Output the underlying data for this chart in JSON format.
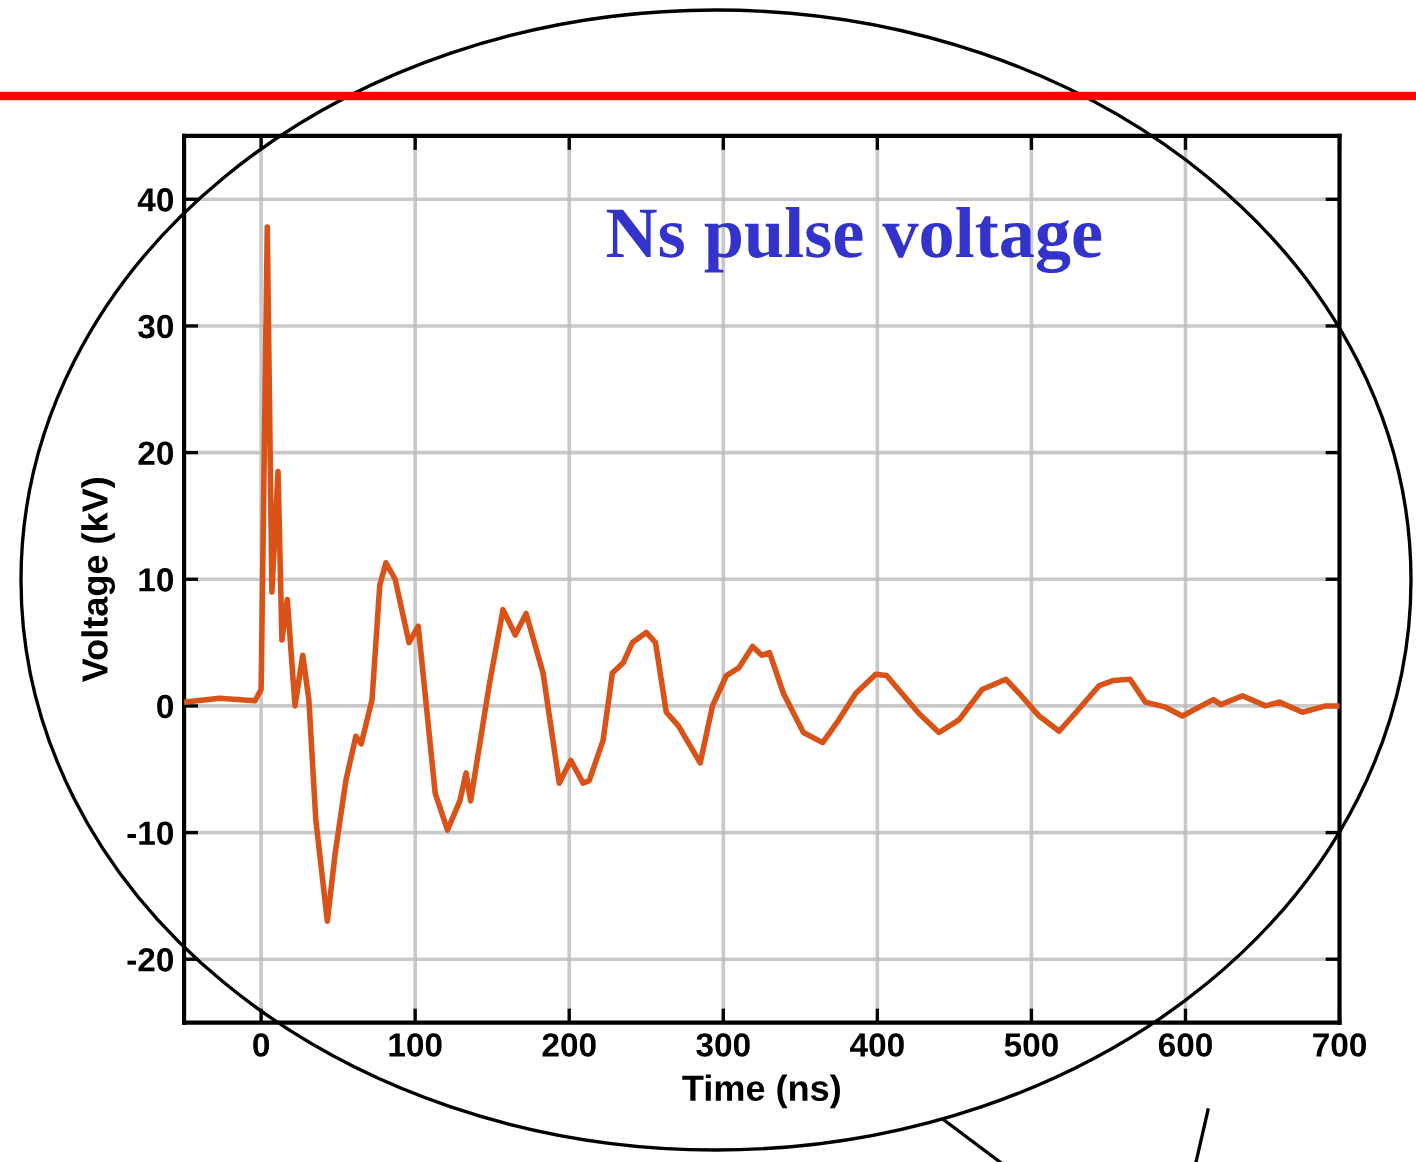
{
  "chart_data": {
    "type": "line",
    "title": "Ns pulse voltage",
    "xlabel": "Time (ns)",
    "ylabel": "Voltage (kV)",
    "xlim": [
      -50,
      700
    ],
    "ylim": [
      -25,
      45
    ],
    "xticks": [
      0,
      100,
      200,
      300,
      400,
      500,
      600,
      700
    ],
    "yticks": [
      -20,
      -10,
      0,
      10,
      20,
      30,
      40
    ],
    "grid": true,
    "legend": false,
    "series": [
      {
        "color": "#d95319",
        "x": [
          -49,
          -27,
          -4,
          0,
          4,
          7,
          11,
          13.5,
          17,
          22,
          27,
          31,
          35.5,
          43,
          48,
          55,
          61.5,
          65,
          72,
          77,
          81,
          87,
          96,
          102,
          113,
          121,
          129,
          133,
          136,
          148,
          157,
          165,
          172,
          183,
          193.5,
          201,
          209,
          213,
          222,
          228,
          235,
          241,
          250,
          256,
          263,
          271,
          285,
          293,
          302,
          310,
          319,
          325,
          330,
          339,
          352,
          364.5,
          375,
          386,
          399,
          406,
          427,
          440,
          453,
          468,
          483.5,
          492,
          505,
          518,
          529,
          544,
          553,
          564,
          574,
          587,
          598,
          618,
          623,
          637,
          652,
          661,
          676,
          691,
          700
        ],
        "values": [
          0.3,
          0.6,
          0.4,
          1.3,
          37.8,
          9,
          18.5,
          5.2,
          8.4,
          0,
          4,
          0.5,
          -9,
          -17,
          -11.7,
          -5.9,
          -2.4,
          -3,
          0.5,
          9.5,
          11.3,
          10,
          5,
          6.3,
          -6.9,
          -9.8,
          -7.5,
          -5.3,
          -7.5,
          1.6,
          7.6,
          5.6,
          7.3,
          2.6,
          -6.1,
          -4.3,
          -6.1,
          -5.9,
          -2.7,
          2.6,
          3.4,
          5,
          5.8,
          5,
          -0.5,
          -1.6,
          -4.5,
          0,
          2.4,
          3,
          4.7,
          4,
          4.2,
          1,
          -2.1,
          -2.9,
          -1.1,
          1,
          2.5,
          2.4,
          -0.6,
          -2.1,
          -1.1,
          1.3,
          2.1,
          1,
          -0.8,
          -2,
          -0.5,
          1.6,
          2,
          2.1,
          0.3,
          -0.1,
          -0.8,
          0.5,
          0.1,
          0.8,
          0,
          0.3,
          -0.5,
          0,
          0
        ]
      }
    ]
  }
}
